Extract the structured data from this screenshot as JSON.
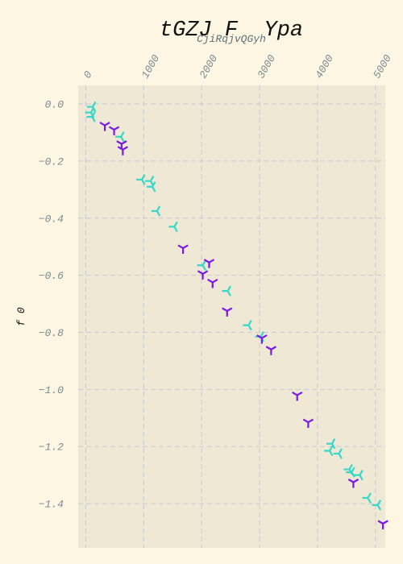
{
  "chart_data": {
    "type": "scatter",
    "title": "tGZJ F  Ypa",
    "subtitle": "CjiRqjvQGyh",
    "xlabel": "",
    "ylabel": "f 0",
    "x_ticks": [
      0,
      1000,
      2000,
      3000,
      4000,
      5000
    ],
    "y_ticks": [
      0.0,
      -0.2,
      -0.4,
      -0.6,
      -0.8,
      -1.0,
      -1.2,
      -1.4
    ],
    "xlim": [
      -130,
      5170
    ],
    "ylim": [
      -1.555,
      0.065
    ],
    "x_axis_position": "top",
    "grid": true,
    "legend": "none",
    "colors": {
      "background": "#fdf6e3",
      "plot_area": "#eee8d5",
      "grid": "#c9c7d4",
      "series_1": "#36d8c8",
      "series_2": "#7a18e8"
    },
    "series": [
      {
        "color": "#36d8c8",
        "marker": "tri_left",
        "points": [
          [
            120,
            -0.01
          ],
          [
            90,
            -0.03
          ],
          [
            110,
            -0.045
          ],
          [
            610,
            -0.115
          ],
          [
            970,
            -0.265
          ],
          [
            1120,
            -0.27
          ],
          [
            1150,
            -0.29
          ],
          [
            1230,
            -0.375
          ],
          [
            1530,
            -0.43
          ],
          [
            2020,
            -0.565
          ],
          [
            2450,
            -0.655
          ],
          [
            2810,
            -0.775
          ],
          [
            3020,
            -0.815
          ],
          [
            4250,
            -1.19
          ],
          [
            4210,
            -1.215
          ],
          [
            4370,
            -1.225
          ],
          [
            4550,
            -1.28
          ],
          [
            4590,
            -1.29
          ],
          [
            4730,
            -1.3
          ],
          [
            4870,
            -1.38
          ],
          [
            5040,
            -1.405
          ]
        ]
      },
      {
        "color": "#7a18e8",
        "marker": "tri_down",
        "points": [
          [
            330,
            -0.075
          ],
          [
            490,
            -0.09
          ],
          [
            620,
            -0.14
          ],
          [
            640,
            -0.16
          ],
          [
            1680,
            -0.505
          ],
          [
            2130,
            -0.555
          ],
          [
            2020,
            -0.595
          ],
          [
            2190,
            -0.625
          ],
          [
            2440,
            -0.725
          ],
          [
            3040,
            -0.82
          ],
          [
            3200,
            -0.86
          ],
          [
            3650,
            -1.02
          ],
          [
            3840,
            -1.115
          ],
          [
            4620,
            -1.325
          ],
          [
            5130,
            -1.47
          ]
        ]
      }
    ]
  }
}
